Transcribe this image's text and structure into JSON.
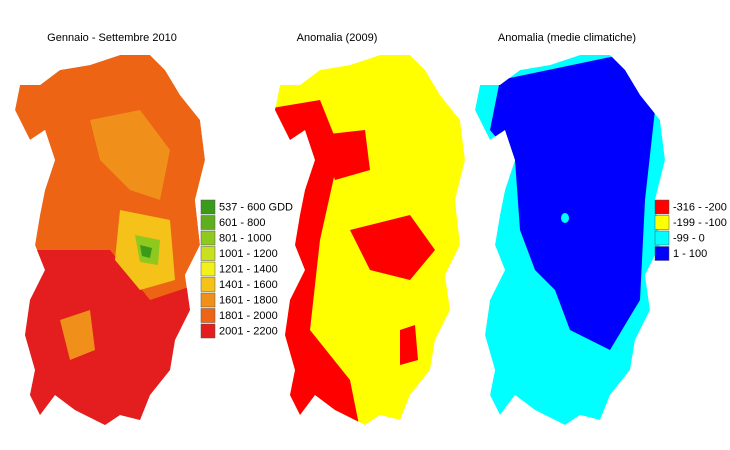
{
  "maps": [
    {
      "title": "Gennaio - Settembre 2010"
    },
    {
      "title": "Anomalia (2009)"
    },
    {
      "title": "Anomalia (medie climatiche)"
    }
  ],
  "legends": [
    {
      "items": [
        {
          "label": "537 - 600 GDD",
          "color": "#3a9a1a"
        },
        {
          "label": "601 - 800",
          "color": "#5fae1e"
        },
        {
          "label": "801 - 1000",
          "color": "#8fc81e"
        },
        {
          "label": "1001 - 1200",
          "color": "#c8e01e"
        },
        {
          "label": "1201 - 1400",
          "color": "#f2f21a"
        },
        {
          "label": "1401 - 1600",
          "color": "#f5c21a"
        },
        {
          "label": "1601 - 1800",
          "color": "#f0901a"
        },
        {
          "label": "1801 - 2000",
          "color": "#ec6414"
        },
        {
          "label": "2001 - 2200",
          "color": "#e41e1e"
        }
      ]
    },
    {
      "items": [
        {
          "label": "-316 - -200",
          "color": "#ff0000"
        },
        {
          "label": "-199 - -100",
          "color": "#ffff00"
        },
        {
          "label": "-99 - 0",
          "color": "#00ffff"
        },
        {
          "label": "1 - 100",
          "color": "#0000ff"
        }
      ]
    }
  ]
}
